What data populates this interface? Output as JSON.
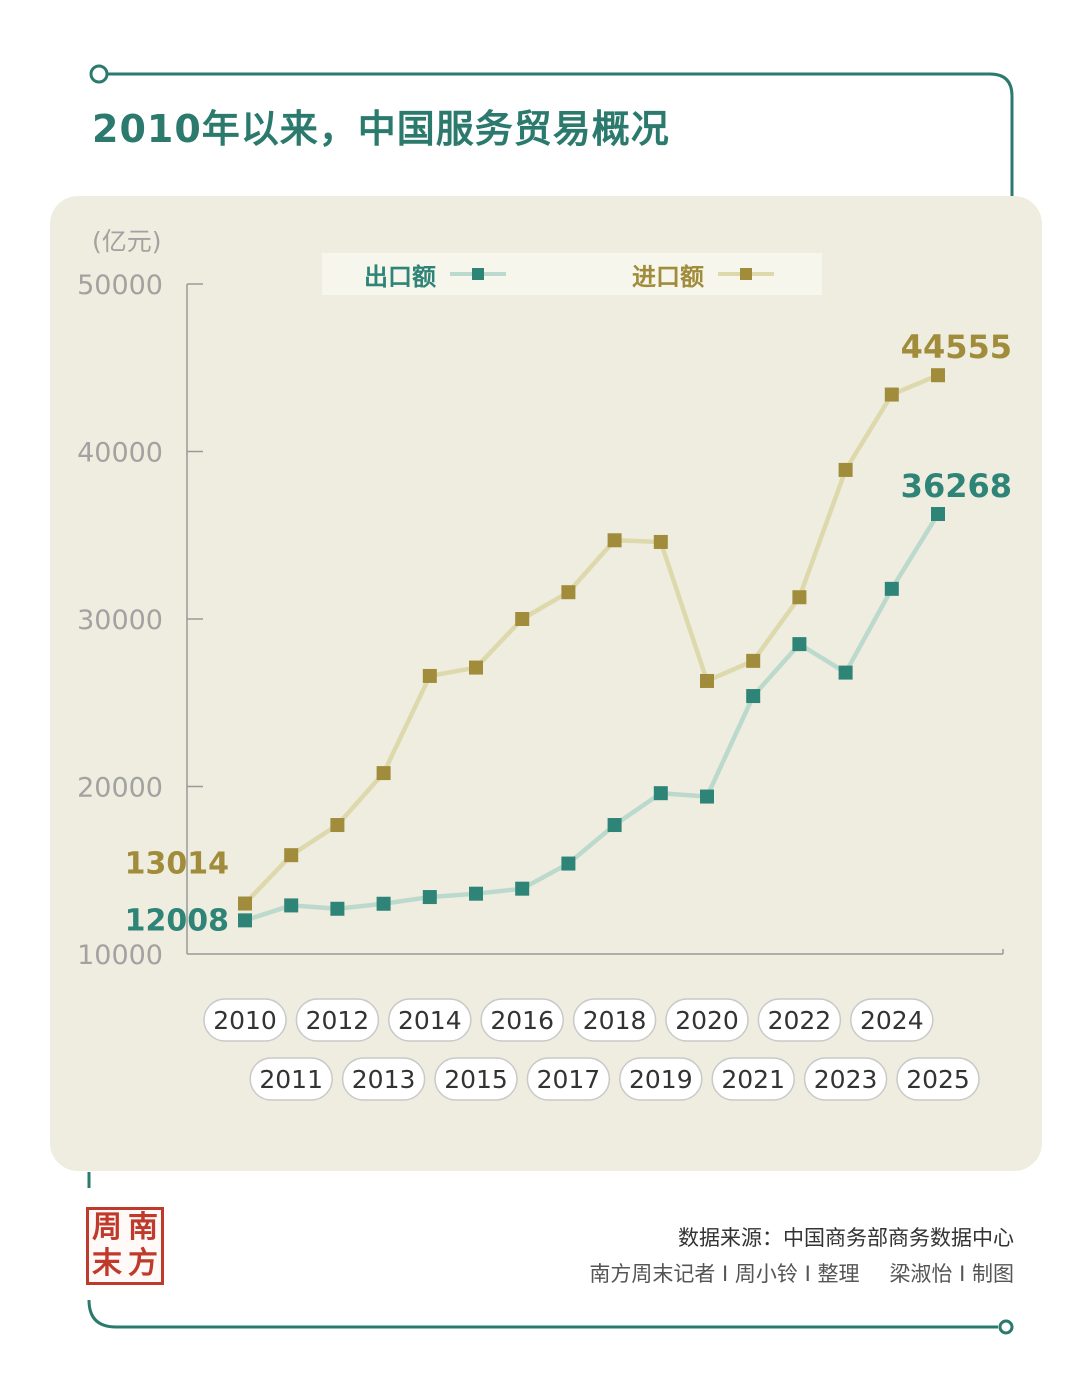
{
  "title": "2010年以来，中国服务贸易概况",
  "source": "数据来源：中国商务部商务数据中心",
  "credit": {
    "reporter": "南方周末记者 I 周小铃 I 整理",
    "designer": "梁淑怡 I 制图"
  },
  "logo_text": [
    "南",
    "方",
    "周",
    "末"
  ],
  "colors": {
    "export": "#2f8478",
    "export_line": "#bcd9cd",
    "import": "#a08c3a",
    "import_line": "#ddd9ac",
    "title": "#2b7a6d",
    "panel": "#eeeddf",
    "axis_text": "#a2a2a2",
    "seal": "#c03a2b"
  },
  "chart_data": {
    "type": "line",
    "ylabel": "(亿元)",
    "ylim": [
      10000,
      50000
    ],
    "yticks": [
      10000,
      20000,
      30000,
      40000,
      50000
    ],
    "legend_placement": "top-center",
    "grid": false,
    "x": [
      "2010",
      "2011",
      "2012",
      "2013",
      "2014",
      "2015",
      "2016",
      "2017",
      "2018",
      "2019",
      "2020",
      "2021",
      "2022",
      "2023",
      "2024",
      "2025"
    ],
    "series": [
      {
        "name": "出口额",
        "key": "export",
        "values": [
          12008,
          12900,
          12700,
          13000,
          13400,
          13600,
          13900,
          15400,
          17700,
          19600,
          19400,
          25400,
          28500,
          26800,
          31800,
          36268
        ],
        "end_labels": {
          "first": "12008",
          "last": "36268"
        }
      },
      {
        "name": "进口额",
        "key": "import",
        "values": [
          13014,
          15900,
          17700,
          20800,
          26600,
          27100,
          30000,
          31600,
          34700,
          34600,
          26300,
          27500,
          31300,
          38900,
          43400,
          44555
        ],
        "end_labels": {
          "first": "13014",
          "last": "44555"
        }
      }
    ]
  }
}
